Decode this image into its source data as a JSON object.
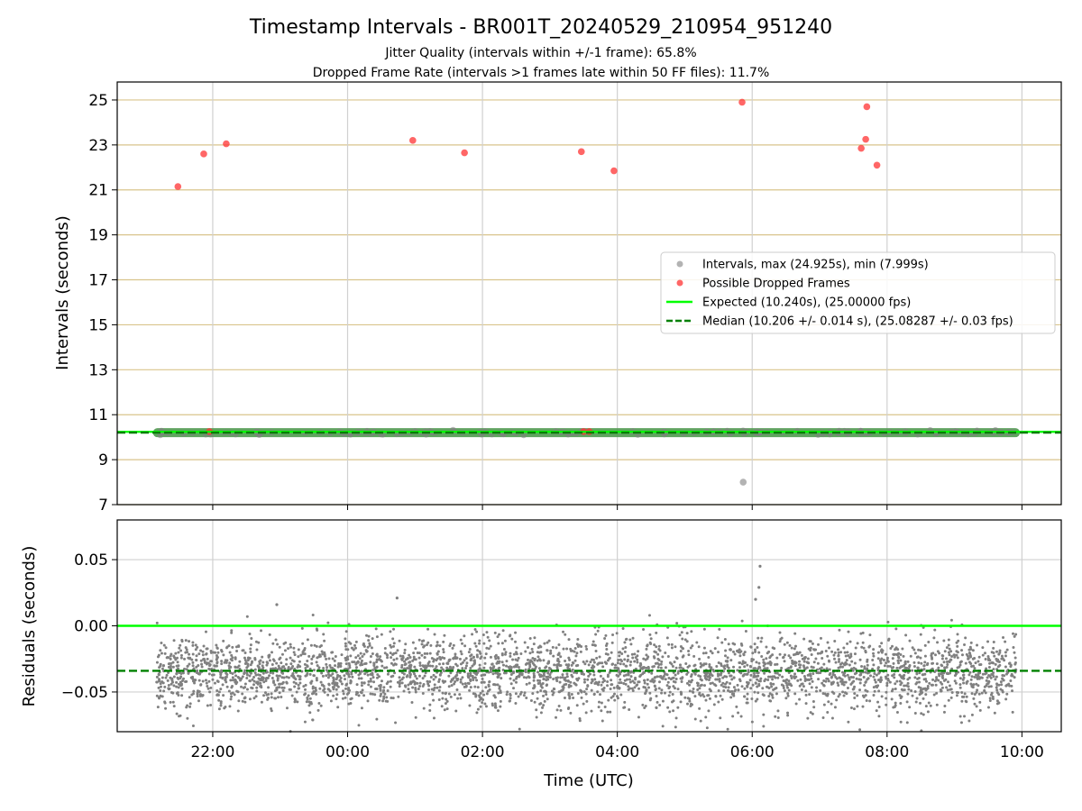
{
  "chart_data": {
    "type": "scatter",
    "title": "Timestamp Intervals - BR001T_20240529_210954_951240",
    "subtitles": [
      "Jitter Quality (intervals within +/-1 frame): 65.8%",
      "Dropped Frame Rate (intervals >1 frames late within 50 FF files): 11.7%"
    ],
    "xlabel": "Time (UTC)",
    "x_ticks": [
      "22:00",
      "00:00",
      "02:00",
      "04:00",
      "06:00",
      "08:00",
      "10:00"
    ],
    "x_start": "21:10",
    "x_end": "09:55",
    "xlim": [
      "20:35",
      "10:35"
    ],
    "top_panel": {
      "ylabel": "Intervals (seconds)",
      "ylim": [
        7,
        25.8
      ],
      "y_ticks": [
        "7",
        "9",
        "11",
        "13",
        "15",
        "17",
        "19",
        "21",
        "23",
        "25"
      ],
      "grid": "on",
      "intervals_baseline": 10.2,
      "intervals_outliers": [
        {
          "x": "05:52",
          "y": 8.0
        }
      ],
      "dropped_frames": [
        {
          "x": "21:29",
          "y": 21.15
        },
        {
          "x": "21:52",
          "y": 22.6
        },
        {
          "x": "22:12",
          "y": 23.05
        },
        {
          "x": "21:57",
          "y": 10.25
        },
        {
          "x": "00:58",
          "y": 23.2
        },
        {
          "x": "01:44",
          "y": 22.65
        },
        {
          "x": "03:28",
          "y": 22.7
        },
        {
          "x": "03:30",
          "y": 10.25
        },
        {
          "x": "03:35",
          "y": 10.25
        },
        {
          "x": "03:57",
          "y": 21.85
        },
        {
          "x": "05:51",
          "y": 24.9
        },
        {
          "x": "07:37",
          "y": 22.85
        },
        {
          "x": "07:41",
          "y": 23.25
        },
        {
          "x": "07:42",
          "y": 24.7
        },
        {
          "x": "07:51",
          "y": 22.1
        }
      ],
      "expected_line": 10.24,
      "median_line": 10.206
    },
    "bottom_panel": {
      "ylabel": "Residuals (seconds)",
      "ylim": [
        -0.08,
        0.08
      ],
      "y_ticks": [
        "0.05",
        "0.00",
        "−0.05"
      ],
      "residual_center": -0.036,
      "residual_spread": 0.014,
      "residual_outliers": [
        {
          "x": "06:07",
          "y": 0.045
        },
        {
          "x": "06:06",
          "y": 0.029
        },
        {
          "x": "06:03",
          "y": 0.02
        },
        {
          "x": "00:44",
          "y": 0.021
        },
        {
          "x": "22:57",
          "y": 0.016
        }
      ],
      "expected_line": 0.0,
      "median_line": -0.034
    },
    "legend": {
      "placement": "center-right",
      "entries": [
        {
          "label": "Intervals, max (24.925s), min (7.999s)",
          "kind": "marker",
          "color": "#808080"
        },
        {
          "label": "Possible Dropped Frames",
          "kind": "marker",
          "color": "#ff3333"
        },
        {
          "label": "Expected (10.240s), (25.00000 fps)",
          "kind": "solid",
          "color": "#00ff00"
        },
        {
          "label": "Median (10.206 +/- 0.014 s), (25.08287 +/- 0.03 fps)",
          "kind": "dashed",
          "color": "#008000"
        }
      ]
    },
    "colors": {
      "intervals": "#808080",
      "intervals_band": "#4f9a4f",
      "dropped": "#ff3333",
      "expected": "#00ff00",
      "median": "#008000",
      "grid": "#d0d0d0",
      "y_grid_top": "#d9c48c"
    }
  }
}
